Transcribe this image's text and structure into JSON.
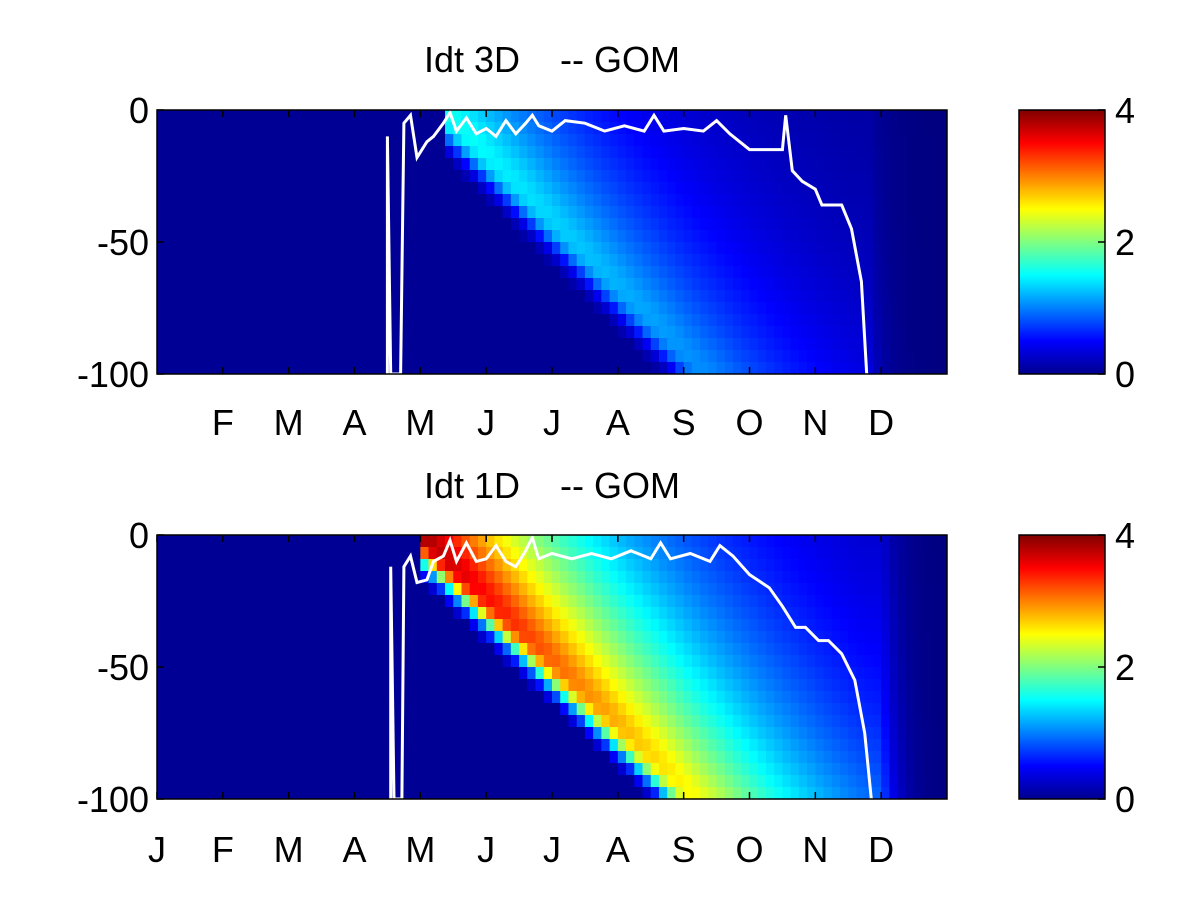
{
  "chart_data": [
    {
      "type": "heatmap",
      "title": "Idt 3D    -- GOM",
      "xlabel": "",
      "ylabel": "",
      "x_tick_labels": [
        "F",
        "M",
        "A",
        "M",
        "J",
        "J",
        "A",
        "S",
        "O",
        "N",
        "D"
      ],
      "x_tick_months": [
        2,
        3,
        4,
        5,
        6,
        7,
        8,
        9,
        10,
        11,
        12
      ],
      "xlim_months": [
        1,
        13
      ],
      "y_tick_labels": [
        "0",
        "-50",
        "-100"
      ],
      "y_ticks": [
        0,
        -50,
        -100
      ],
      "ylim": [
        -100,
        0
      ],
      "colorbar": {
        "ticks": [
          "0",
          "2",
          "4"
        ],
        "range": [
          0,
          4
        ],
        "colormap": "jet"
      },
      "grid": false,
      "field": {
        "onset_month": 5.4,
        "peak_value": 1.9,
        "slope_depth_per_month": 25,
        "width_months": 2.0,
        "surface_depth": -10,
        "end_month": 11.8
      },
      "overlay_line": {
        "name": "white contour",
        "color": "#ffffff",
        "points": [
          [
            4.5,
            -100
          ],
          [
            4.5,
            -10
          ],
          [
            4.55,
            -100
          ],
          [
            4.7,
            -100
          ],
          [
            4.75,
            -5
          ],
          [
            4.85,
            -2
          ],
          [
            4.95,
            -18
          ],
          [
            5.1,
            -12
          ],
          [
            5.2,
            -10
          ],
          [
            5.35,
            -5
          ],
          [
            5.45,
            -1
          ],
          [
            5.55,
            -8
          ],
          [
            5.7,
            -3
          ],
          [
            5.85,
            -9
          ],
          [
            6.0,
            -7
          ],
          [
            6.15,
            -10
          ],
          [
            6.3,
            -4
          ],
          [
            6.45,
            -9
          ],
          [
            6.6,
            -5
          ],
          [
            6.7,
            -2
          ],
          [
            6.8,
            -6
          ],
          [
            7.0,
            -8
          ],
          [
            7.2,
            -4
          ],
          [
            7.5,
            -5
          ],
          [
            7.8,
            -8
          ],
          [
            8.1,
            -6
          ],
          [
            8.4,
            -8
          ],
          [
            8.55,
            -2
          ],
          [
            8.7,
            -8
          ],
          [
            9.0,
            -7
          ],
          [
            9.3,
            -8
          ],
          [
            9.5,
            -4
          ],
          [
            9.7,
            -9
          ],
          [
            10.0,
            -15
          ],
          [
            10.3,
            -15
          ],
          [
            10.5,
            -15
          ],
          [
            10.55,
            -2
          ],
          [
            10.65,
            -23
          ],
          [
            10.8,
            -27
          ],
          [
            11.0,
            -30
          ],
          [
            11.1,
            -36
          ],
          [
            11.4,
            -36
          ],
          [
            11.55,
            -45
          ],
          [
            11.7,
            -65
          ],
          [
            11.78,
            -100
          ]
        ]
      }
    },
    {
      "type": "heatmap",
      "title": "Idt 1D    -- GOM",
      "xlabel": "",
      "ylabel": "",
      "x_tick_labels": [
        "J",
        "F",
        "M",
        "A",
        "M",
        "J",
        "J",
        "A",
        "S",
        "O",
        "N",
        "D"
      ],
      "x_tick_months": [
        1,
        2,
        3,
        4,
        5,
        6,
        7,
        8,
        9,
        10,
        11,
        12
      ],
      "xlim_months": [
        1,
        13
      ],
      "y_tick_labels": [
        "0",
        "-50",
        "-100"
      ],
      "y_ticks": [
        0,
        -50,
        -100
      ],
      "ylim": [
        -100,
        0
      ],
      "colorbar": {
        "ticks": [
          "0",
          "2",
          "4"
        ],
        "range": [
          0,
          4
        ],
        "colormap": "jet"
      },
      "grid": false,
      "field": {
        "onset_month": 5.0,
        "peak_value": 4.6,
        "slope_depth_per_month": 24,
        "width_months": 2.4,
        "surface_depth": -8,
        "end_month": 12.0
      },
      "overlay_line": {
        "name": "white contour",
        "color": "#ffffff",
        "points": [
          [
            4.55,
            -100
          ],
          [
            4.55,
            -12
          ],
          [
            4.6,
            -100
          ],
          [
            4.72,
            -100
          ],
          [
            4.75,
            -12
          ],
          [
            4.85,
            -8
          ],
          [
            4.95,
            -18
          ],
          [
            5.1,
            -17
          ],
          [
            5.2,
            -10
          ],
          [
            5.35,
            -8
          ],
          [
            5.45,
            -2
          ],
          [
            5.55,
            -10
          ],
          [
            5.7,
            -3
          ],
          [
            5.85,
            -10
          ],
          [
            6.0,
            -9
          ],
          [
            6.15,
            -4
          ],
          [
            6.3,
            -10
          ],
          [
            6.45,
            -12
          ],
          [
            6.6,
            -6
          ],
          [
            6.7,
            -1
          ],
          [
            6.8,
            -9
          ],
          [
            7.0,
            -7
          ],
          [
            7.3,
            -9
          ],
          [
            7.6,
            -7
          ],
          [
            7.9,
            -9
          ],
          [
            8.2,
            -6
          ],
          [
            8.5,
            -9
          ],
          [
            8.65,
            -3
          ],
          [
            8.8,
            -9
          ],
          [
            9.1,
            -7
          ],
          [
            9.4,
            -10
          ],
          [
            9.55,
            -4
          ],
          [
            9.75,
            -8
          ],
          [
            10.0,
            -15
          ],
          [
            10.3,
            -20
          ],
          [
            10.5,
            -27
          ],
          [
            10.7,
            -35
          ],
          [
            10.85,
            -35
          ],
          [
            11.05,
            -40
          ],
          [
            11.2,
            -40
          ],
          [
            11.4,
            -45
          ],
          [
            11.6,
            -55
          ],
          [
            11.75,
            -75
          ],
          [
            11.85,
            -100
          ]
        ]
      }
    }
  ]
}
